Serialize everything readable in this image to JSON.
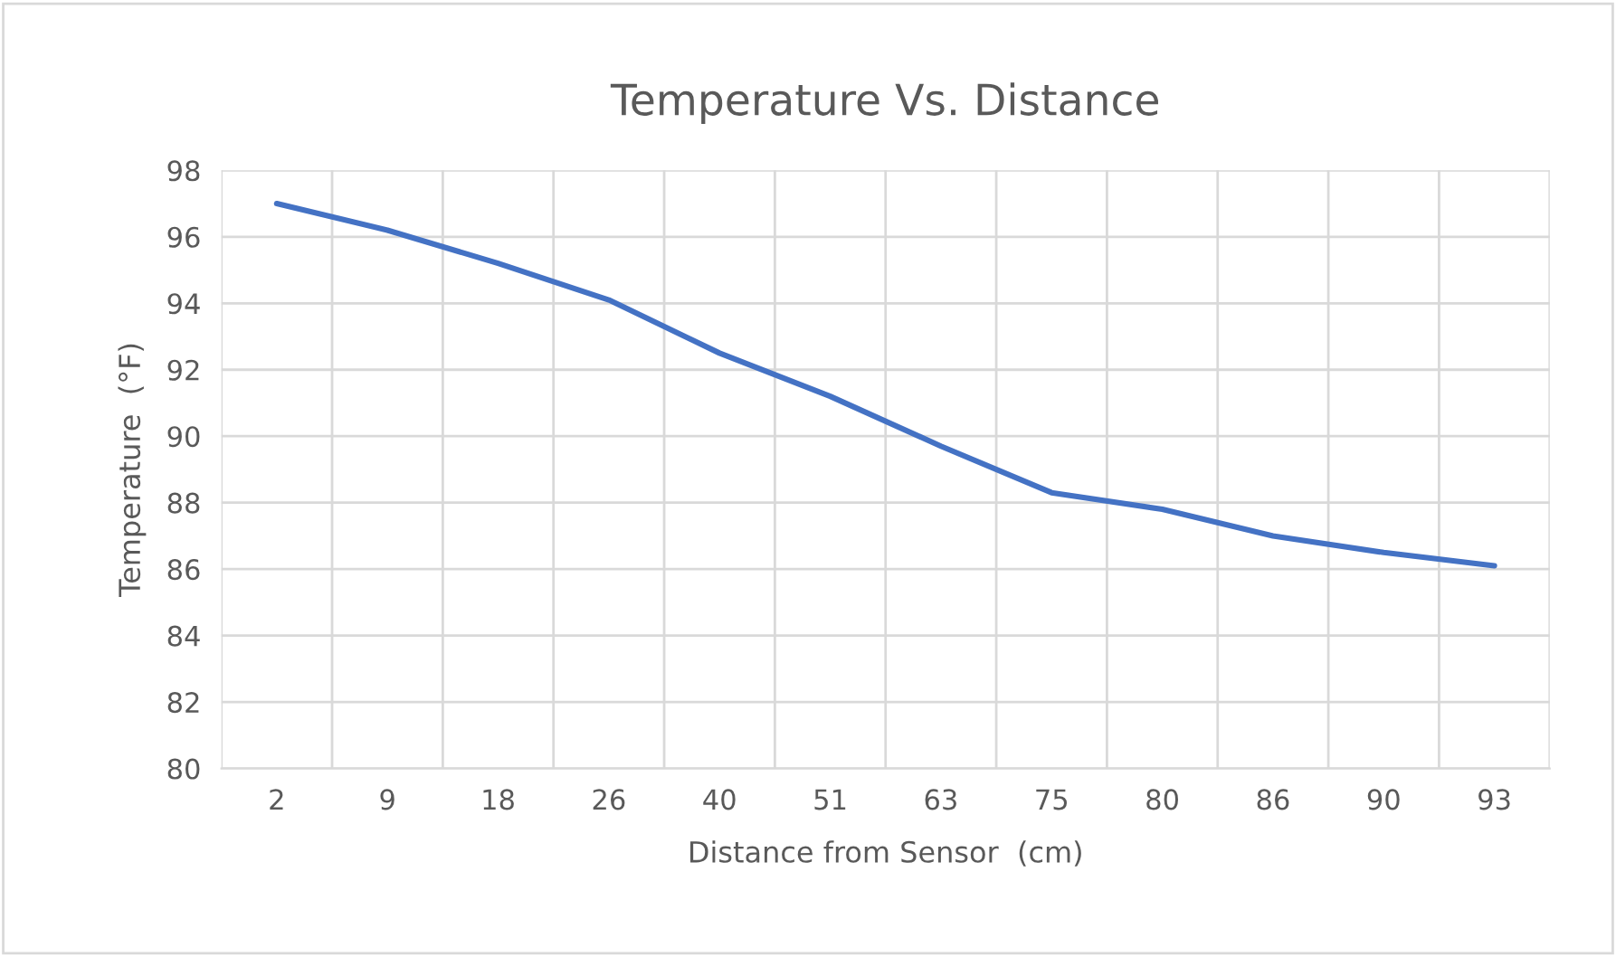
{
  "chart_data": {
    "type": "line",
    "title": "Temperature Vs. Distance",
    "xlabel": "Distance from Sensor  (cm)",
    "ylabel": "Temperature  (°F)",
    "categories": [
      "2",
      "9",
      "18",
      "26",
      "40",
      "51",
      "63",
      "75",
      "80",
      "86",
      "90",
      "93"
    ],
    "series": [
      {
        "color": "#4472c4",
        "values": [
          97.0,
          96.2,
          95.2,
          94.1,
          92.5,
          91.2,
          89.7,
          88.3,
          87.8,
          87.0,
          86.5,
          86.1
        ]
      }
    ],
    "ylim": [
      80,
      98
    ],
    "yticks": [
      80,
      82,
      84,
      86,
      88,
      90,
      92,
      94,
      96,
      98
    ],
    "grid": true,
    "marker": "none",
    "line_style": "solid"
  }
}
